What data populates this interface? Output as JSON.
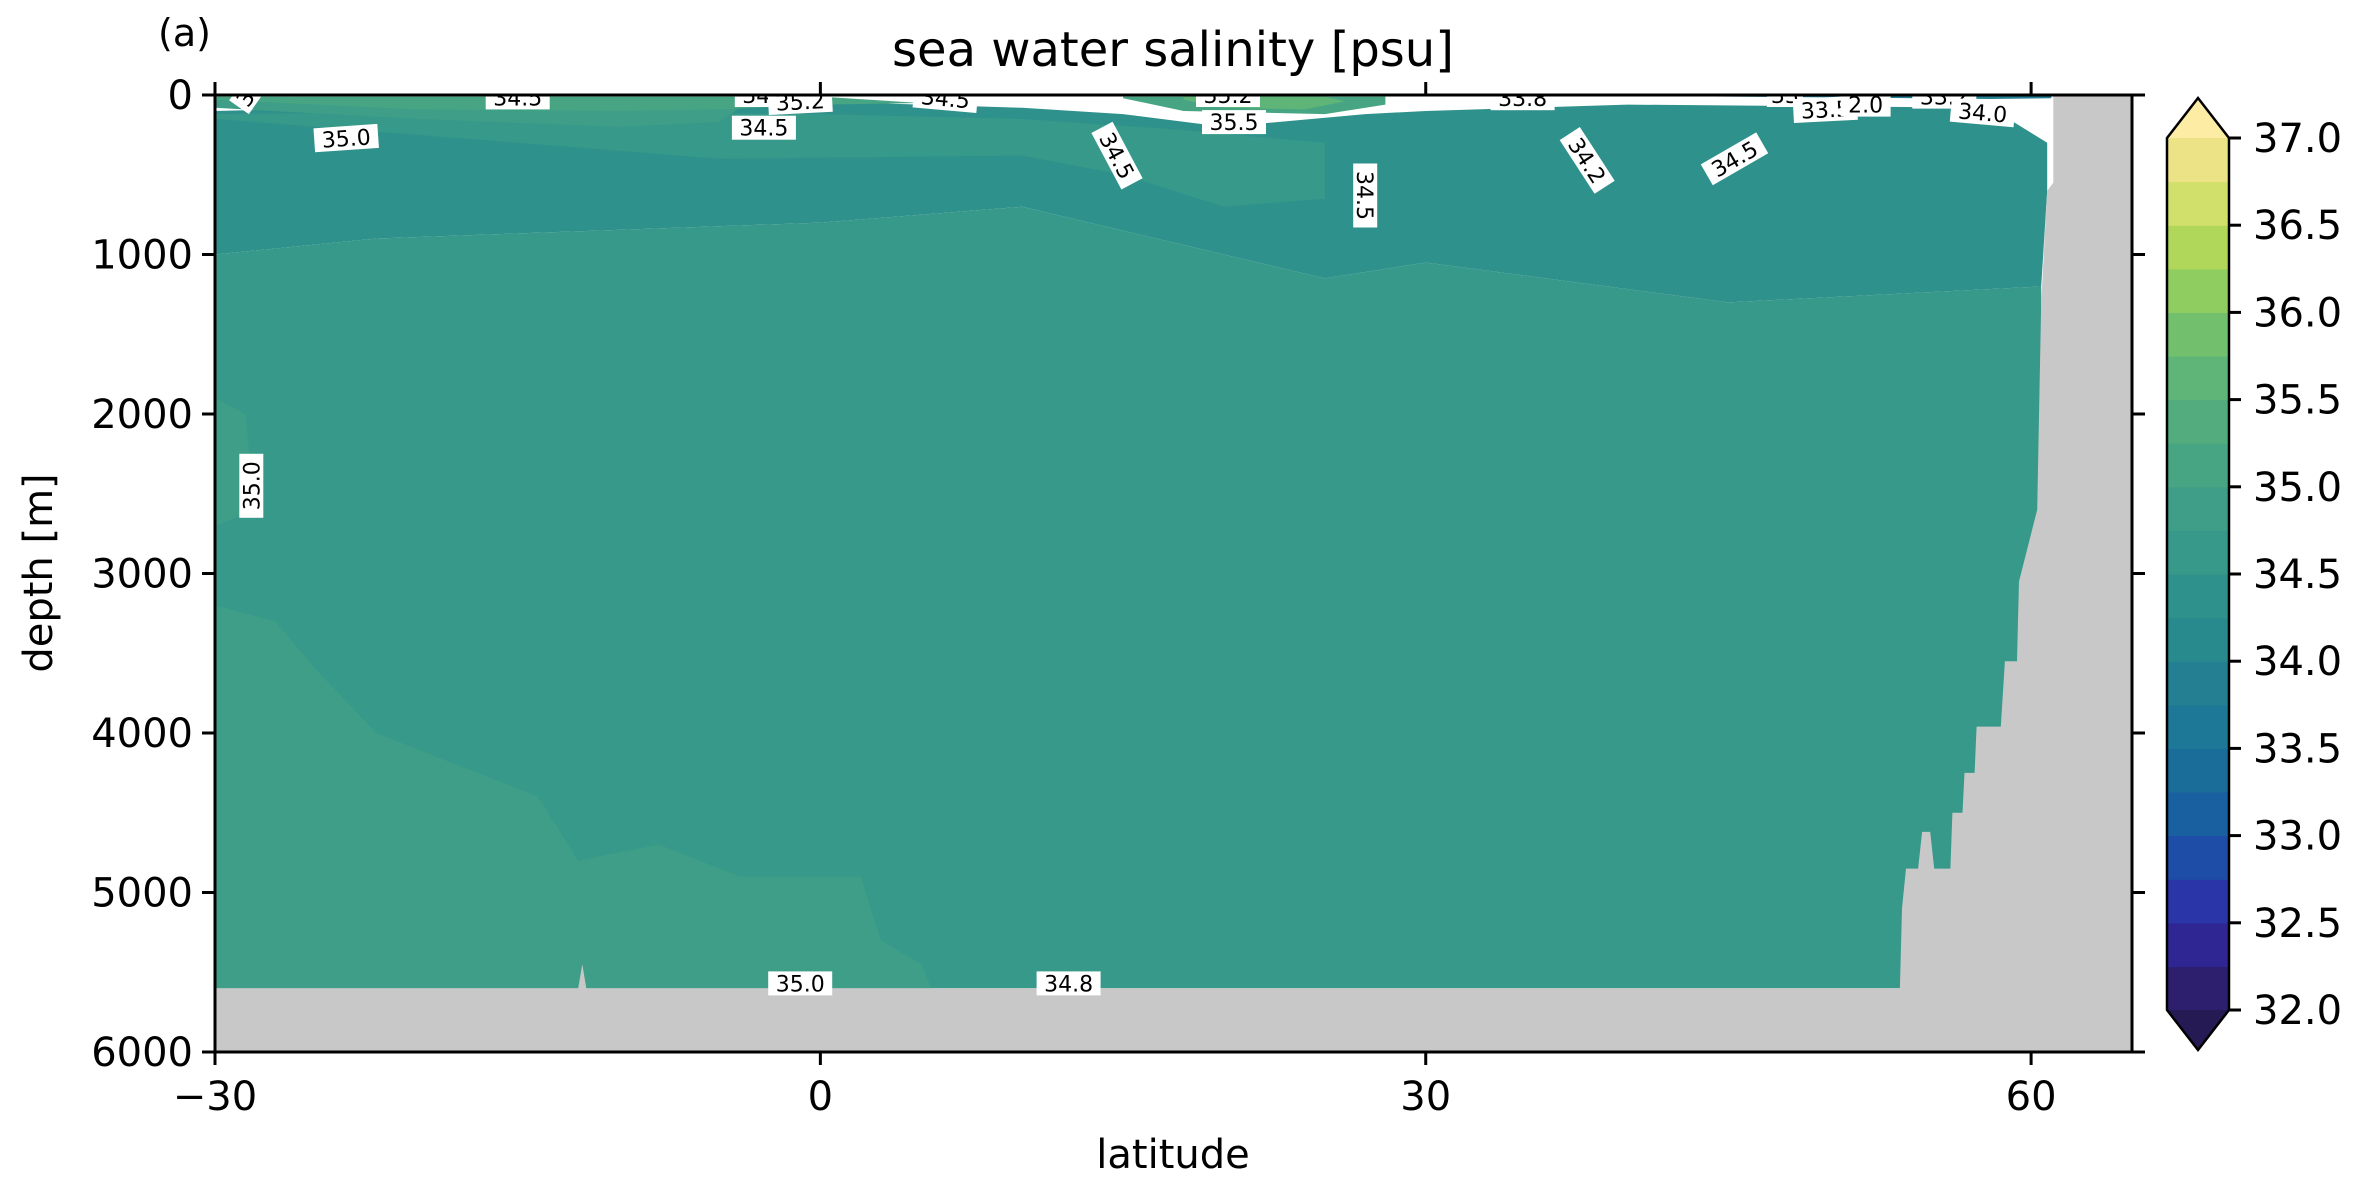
{
  "figure": {
    "panel_label": "(a)"
  },
  "chart_data": {
    "type": "heatmap",
    "subtype": "filled-contour depth section",
    "title": "sea water salinity [psu]",
    "xlabel": "latitude",
    "ylabel": "depth [m]",
    "xlim": [
      -30,
      65
    ],
    "ylim": [
      6000,
      0
    ],
    "y_inverted": true,
    "xticks": [
      -30,
      0,
      30,
      60
    ],
    "xtick_labels": [
      "−30",
      "0",
      "30",
      "60"
    ],
    "yticks": [
      0,
      1000,
      2000,
      3000,
      4000,
      5000,
      6000
    ],
    "ytick_labels": [
      "0",
      "1000",
      "2000",
      "3000",
      "4000",
      "5000",
      "6000"
    ],
    "colorbar": {
      "colormap": "haline-like (dark navy to yellow)",
      "extend": "both",
      "levels": [
        32.0,
        32.25,
        32.5,
        32.75,
        33.0,
        33.25,
        33.5,
        33.75,
        34.0,
        34.25,
        34.5,
        34.75,
        35.0,
        35.25,
        35.5,
        35.75,
        36.0,
        36.25,
        36.5,
        36.75,
        37.0
      ],
      "colors": [
        "#2e1f6e",
        "#2f2694",
        "#2a35a8",
        "#1e4da8",
        "#18609f",
        "#1a6c99",
        "#1d7796",
        "#237f91",
        "#298a8e",
        "#2f918b",
        "#37998a",
        "#3e9e87",
        "#47a583",
        "#52ac7d",
        "#5fb577",
        "#72c06d",
        "#8fcd60",
        "#b1d75a",
        "#d1e06a",
        "#ece386",
        "#fbe89c"
      ],
      "extend_low_color": "#261a55",
      "extend_high_color": "#fdeca4",
      "ticks": [
        32.0,
        32.5,
        33.0,
        33.5,
        34.0,
        34.5,
        35.0,
        35.5,
        36.0,
        36.5,
        37.0
      ],
      "tick_labels": [
        "32.0",
        "32.5",
        "33.0",
        "33.5",
        "34.0",
        "34.5",
        "35.0",
        "35.5",
        "36.0",
        "36.5",
        "37.0"
      ]
    },
    "land_color": "#c8c8c8",
    "bathymetry_profile": [
      [
        -30,
        5600
      ],
      [
        -12,
        5600
      ],
      [
        -11.8,
        5450
      ],
      [
        -11.6,
        5600
      ],
      [
        53.5,
        5600
      ],
      [
        53.6,
        5100
      ],
      [
        53.8,
        4850
      ],
      [
        54.4,
        4850
      ],
      [
        54.6,
        4620
      ],
      [
        55,
        4620
      ],
      [
        55.2,
        4850
      ],
      [
        56,
        4850
      ],
      [
        56.1,
        4500
      ],
      [
        56.6,
        4500
      ],
      [
        56.7,
        4250
      ],
      [
        57.2,
        4250
      ],
      [
        57.3,
        3960
      ],
      [
        58.5,
        3960
      ],
      [
        58.7,
        3550
      ],
      [
        59.3,
        3550
      ],
      [
        59.4,
        3050
      ],
      [
        59.9,
        2800
      ],
      [
        60.3,
        2600
      ],
      [
        60.5,
        1300
      ],
      [
        60.8,
        600
      ],
      [
        61.1,
        550
      ],
      [
        61.1,
        0
      ]
    ],
    "regions": [
      {
        "value": 34.55,
        "polygon": [
          [
            -30,
            1000
          ],
          [
            -22,
            900
          ],
          [
            0,
            800
          ],
          [
            10,
            700
          ],
          [
            20,
            1000
          ],
          [
            25,
            1150
          ],
          [
            30,
            1050
          ],
          [
            45,
            1300
          ],
          [
            60.5,
            1200
          ],
          [
            60.5,
            5600
          ],
          [
            -30,
            5600
          ]
        ]
      },
      {
        "value": 34.3,
        "polygon": [
          [
            -30,
            100
          ],
          [
            -15,
            50
          ],
          [
            0,
            40
          ],
          [
            10,
            80
          ],
          [
            15,
            120
          ],
          [
            20,
            200
          ],
          [
            27,
            120
          ],
          [
            30,
            100
          ],
          [
            40,
            60
          ],
          [
            58,
            80
          ],
          [
            60.8,
            300
          ],
          [
            60.8,
            600
          ],
          [
            60.5,
            1200
          ],
          [
            45,
            1300
          ],
          [
            30,
            1050
          ],
          [
            25,
            1150
          ],
          [
            20,
            1000
          ],
          [
            10,
            700
          ],
          [
            0,
            800
          ],
          [
            -22,
            900
          ],
          [
            -30,
            1000
          ]
        ]
      },
      {
        "value": 34.55,
        "polygon": [
          [
            -30,
            150
          ],
          [
            -15,
            300
          ],
          [
            -5,
            400
          ],
          [
            10,
            380
          ],
          [
            15,
            500
          ],
          [
            20,
            700
          ],
          [
            25,
            650
          ],
          [
            25,
            300
          ],
          [
            18,
            220
          ],
          [
            10,
            150
          ],
          [
            0,
            120
          ],
          [
            -15,
            100
          ],
          [
            -30,
            120
          ]
        ]
      },
      {
        "value": 34.8,
        "polygon": [
          [
            -30,
            1900
          ],
          [
            -28.5,
            2000
          ],
          [
            -28,
            2600
          ],
          [
            -30,
            2700
          ]
        ]
      },
      {
        "value": 34.8,
        "polygon": [
          [
            -30,
            3200
          ],
          [
            -27,
            3300
          ],
          [
            -25,
            3600
          ],
          [
            -22,
            4000
          ],
          [
            -18,
            4200
          ],
          [
            -14,
            4400
          ],
          [
            -12,
            4800
          ],
          [
            -8,
            4700
          ],
          [
            -4,
            4900
          ],
          [
            2,
            4900
          ],
          [
            3,
            5300
          ],
          [
            5,
            5450
          ],
          [
            5.5,
            5600
          ],
          [
            -30,
            5600
          ]
        ]
      },
      {
        "value": 34.8,
        "polygon": [
          [
            -30,
            80
          ],
          [
            -20,
            150
          ],
          [
            -10,
            200
          ],
          [
            -5,
            170
          ],
          [
            -4,
            80
          ],
          [
            -10,
            40
          ],
          [
            -30,
            30
          ]
        ]
      },
      {
        "value": 35.1,
        "polygon": [
          [
            -30,
            30
          ],
          [
            -20,
            90
          ],
          [
            -10,
            100
          ],
          [
            -5,
            90
          ],
          [
            0,
            60
          ],
          [
            5,
            50
          ],
          [
            0,
            10
          ],
          [
            -30,
            10
          ]
        ]
      },
      {
        "value": 35.1,
        "polygon": [
          [
            15,
            20
          ],
          [
            18,
            100
          ],
          [
            25,
            120
          ],
          [
            28,
            60
          ],
          [
            28,
            10
          ],
          [
            15,
            10
          ]
        ]
      },
      {
        "value": 35.6,
        "polygon": [
          [
            18,
            30
          ],
          [
            20,
            80
          ],
          [
            24,
            90
          ],
          [
            26,
            40
          ],
          [
            25,
            10
          ],
          [
            18,
            10
          ]
        ]
      },
      {
        "value": 33.9,
        "polygon": [
          [
            40,
            5
          ],
          [
            50,
            15
          ],
          [
            58,
            25
          ],
          [
            61,
            20
          ],
          [
            61,
            5
          ]
        ]
      },
      {
        "value": 33.4,
        "polygon": [
          [
            50,
            3
          ],
          [
            56,
            8
          ],
          [
            61,
            12
          ],
          [
            61,
            3
          ]
        ]
      },
      {
        "value": 32.8,
        "polygon": [
          [
            57,
            2
          ],
          [
            60,
            4
          ],
          [
            61.1,
            6
          ],
          [
            61.1,
            1
          ]
        ]
      },
      {
        "value": 32.3,
        "polygon": [
          [
            59.5,
            1
          ],
          [
            61.1,
            3
          ],
          [
            61.1,
            0
          ],
          [
            59.5,
            0
          ]
        ]
      }
    ],
    "contour_labels": [
      {
        "x": -28.5,
        "y": 20,
        "text": "3",
        "angle": -55
      },
      {
        "x": -15,
        "y": 15,
        "text": "34.5",
        "angle": 0
      },
      {
        "x": -23.5,
        "y": 270,
        "text": "35.0",
        "angle": -4
      },
      {
        "x": -3,
        "y": 0,
        "text": "34.",
        "angle": 0
      },
      {
        "x": -1,
        "y": 40,
        "text": "35.2",
        "angle": -3
      },
      {
        "x": -2.8,
        "y": 205,
        "text": "34.5",
        "angle": 0
      },
      {
        "x": 6.2,
        "y": 20,
        "text": "34.5",
        "angle": 5
      },
      {
        "x": 20.2,
        "y": 0,
        "text": "35.2",
        "angle": 0
      },
      {
        "x": 20.5,
        "y": 170,
        "text": "35.5",
        "angle": 0
      },
      {
        "x": 14.7,
        "y": 380,
        "text": "34.5",
        "angle": 62
      },
      {
        "x": 27,
        "y": 630,
        "text": "34.5",
        "angle": 90
      },
      {
        "x": 34.8,
        "y": 20,
        "text": "33.8",
        "angle": 0
      },
      {
        "x": 38,
        "y": 410,
        "text": "34.2",
        "angle": 57
      },
      {
        "x": 45.3,
        "y": 400,
        "text": "34.5",
        "angle": -30
      },
      {
        "x": 47.8,
        "y": 0,
        "text": "33",
        "angle": 0
      },
      {
        "x": 49.8,
        "y": 90,
        "text": "33.5",
        "angle": -3
      },
      {
        "x": 51.8,
        "y": 60,
        "text": "2.0",
        "angle": 0
      },
      {
        "x": 55.7,
        "y": 10,
        "text": "33.2",
        "angle": 0
      },
      {
        "x": 57.6,
        "y": 110,
        "text": "34.0",
        "angle": 5
      },
      {
        "x": -28.2,
        "y": 2450,
        "text": "35.0",
        "angle": -90
      },
      {
        "x": -1,
        "y": 5570,
        "text": "35.0",
        "angle": 0
      },
      {
        "x": 12.3,
        "y": 5570,
        "text": "34.8",
        "angle": 0
      }
    ]
  }
}
